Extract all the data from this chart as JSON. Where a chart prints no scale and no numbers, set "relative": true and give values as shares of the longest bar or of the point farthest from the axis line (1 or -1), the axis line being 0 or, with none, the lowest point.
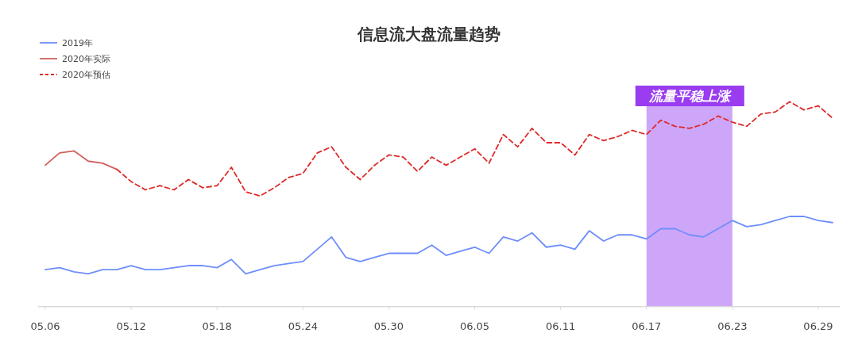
{
  "chart_data": {
    "type": "line",
    "title": "信息流大盘流量趋势",
    "relative": true,
    "legend": "top left",
    "grid": false,
    "categories": [
      "05.06",
      null,
      null,
      null,
      null,
      null,
      "05.12",
      null,
      null,
      null,
      null,
      null,
      "05.18",
      null,
      null,
      null,
      null,
      null,
      "05.24",
      null,
      null,
      null,
      null,
      null,
      "05.30",
      null,
      null,
      null,
      null,
      null,
      "06.05",
      null,
      null,
      null,
      null,
      null,
      "06.11",
      null,
      null,
      null,
      null,
      null,
      "06.17",
      null,
      null,
      null,
      null,
      null,
      "06.23",
      null,
      null,
      null,
      null,
      null,
      "06.29",
      null
    ],
    "series": [
      {
        "name": "2019年",
        "color": "#6e8efb",
        "values": [
          0.18,
          0.19,
          0.17,
          0.16,
          0.18,
          0.18,
          0.2,
          0.18,
          0.18,
          0.19,
          0.2,
          0.2,
          0.19,
          0.23,
          0.16,
          0.18,
          0.2,
          0.21,
          0.22,
          0.28,
          0.34,
          0.24,
          0.22,
          0.24,
          0.26,
          0.26,
          0.26,
          0.3,
          0.25,
          0.27,
          0.29,
          0.26,
          0.34,
          0.32,
          0.36,
          0.29,
          0.3,
          0.28,
          0.37,
          0.32,
          0.35,
          0.35,
          0.33,
          0.38,
          0.38,
          0.35,
          0.34,
          0.38,
          0.42,
          0.39,
          0.4,
          0.42,
          0.44,
          0.44,
          0.42,
          0.41
        ]
      },
      {
        "name": "2020年实际",
        "color": "#d0605e",
        "values": [
          0.69,
          0.75,
          0.76,
          0.71,
          0.7,
          0.67,
          null,
          null,
          null,
          null,
          null,
          null,
          null,
          null,
          null,
          null,
          null,
          null,
          null,
          null,
          null,
          null,
          null,
          null,
          null,
          null,
          null,
          null,
          null,
          null,
          null,
          null,
          null,
          null,
          null,
          null,
          null,
          null,
          null,
          null,
          null,
          null,
          null,
          null,
          null,
          null,
          null,
          null,
          null,
          null,
          null,
          null,
          null,
          null,
          null,
          null
        ]
      },
      {
        "name": "2020年预估",
        "color": "#dd2a2a",
        "line_style": "dashed",
        "values": [
          null,
          null,
          null,
          null,
          null,
          0.67,
          0.61,
          0.57,
          0.59,
          0.57,
          0.62,
          0.58,
          0.59,
          0.68,
          0.56,
          0.54,
          0.58,
          0.63,
          0.65,
          0.75,
          0.78,
          0.68,
          0.62,
          0.69,
          0.74,
          0.73,
          0.66,
          0.73,
          0.69,
          0.73,
          0.77,
          0.7,
          0.84,
          0.78,
          0.87,
          0.8,
          0.8,
          0.74,
          0.84,
          0.81,
          0.83,
          0.86,
          0.84,
          0.91,
          0.88,
          0.87,
          0.89,
          0.93,
          0.9,
          0.88,
          0.94,
          0.95,
          1,
          0.96,
          0.98,
          0.92
        ]
      }
    ],
    "bands": [
      {
        "axis": "x",
        "from": "06.17",
        "to": "06.23",
        "label": "流量平稳上涨",
        "color": "#c99cf8"
      }
    ]
  }
}
